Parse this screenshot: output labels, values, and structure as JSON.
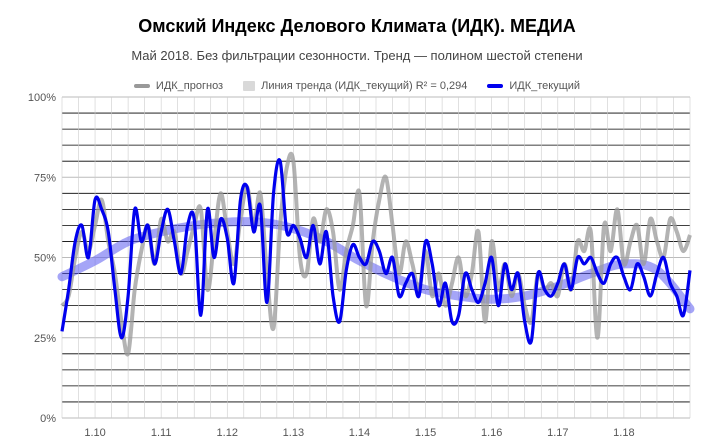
{
  "header": {
    "title": "Омский Индекс Делового Климата (ИДК). МЕДИА",
    "subtitle": "Май 2018. Без фильтрации сезонности. Тренд — полином шестой степени"
  },
  "legend": [
    {
      "label": "ИДК_прогноз",
      "color": "#999999"
    },
    {
      "label": "Линия тренда (ИДК_текущий) R² = 0,294",
      "color": "#d9d9d9"
    },
    {
      "label": "ИДК_текущий",
      "color": "#0000ee"
    }
  ],
  "colors": {
    "forecast": "#999999",
    "current": "#0000ee",
    "trend": "#5b5bf0",
    "grid": "#000000"
  },
  "chart_data": {
    "type": "line",
    "title": "Омский Индекс Делового Климата (ИДК). МЕДИА",
    "subtitle": "Май 2018. Без фильтрации сезонности. Тренд — полином шестой степени",
    "x_tick_labels": [
      "1.10",
      "1.11",
      "1.12",
      "1.13",
      "1.14",
      "1.15",
      "1.16",
      "1.17",
      "1.18"
    ],
    "y_tick_labels": [
      "0%",
      "25%",
      "50%",
      "75%",
      "100%"
    ],
    "xlim": [
      2009.0,
      2018.5
    ],
    "ylim": [
      0,
      100
    ],
    "grid": true,
    "legend_position": "top",
    "series": [
      {
        "name": "ИДК_прогноз",
        "style": "gray-thick-line",
        "x": [
          2009.0,
          2009.1,
          2009.2,
          2009.3,
          2009.4,
          2009.5,
          2009.6,
          2009.7,
          2009.8,
          2009.9,
          2010.0,
          2010.1,
          2010.2,
          2010.3,
          2010.4,
          2010.5,
          2010.6,
          2010.7,
          2010.8,
          2010.9,
          2011.0,
          2011.1,
          2011.2,
          2011.3,
          2011.4,
          2011.5,
          2011.6,
          2011.7,
          2011.8,
          2011.9,
          2012.0,
          2012.1,
          2012.2,
          2012.3,
          2012.4,
          2012.5,
          2012.6,
          2012.7,
          2012.8,
          2012.9,
          2013.0,
          2013.1,
          2013.2,
          2013.3,
          2013.4,
          2013.5,
          2013.6,
          2013.7,
          2013.8,
          2013.9,
          2014.0,
          2014.1,
          2014.2,
          2014.3,
          2014.4,
          2014.5,
          2014.6,
          2014.7,
          2014.8,
          2014.9,
          2015.0,
          2015.1,
          2015.2,
          2015.3,
          2015.4,
          2015.5,
          2015.6,
          2015.7,
          2015.8,
          2015.9,
          2016.0,
          2016.1,
          2016.2,
          2016.3,
          2016.4,
          2016.5,
          2016.6,
          2016.7,
          2016.8,
          2016.9,
          2017.0,
          2017.1,
          2017.2,
          2017.3,
          2017.4,
          2017.5,
          2017.6,
          2017.7,
          2017.8,
          2017.9,
          2018.0,
          2018.1,
          2018.2,
          2018.3,
          2018.4,
          2018.5
        ],
        "values": [
          35,
          38,
          50,
          58,
          52,
          60,
          68,
          55,
          45,
          30,
          20,
          40,
          52,
          60,
          48,
          62,
          55,
          58,
          45,
          52,
          60,
          65,
          40,
          55,
          70,
          58,
          48,
          62,
          72,
          60,
          70,
          45,
          28,
          60,
          78,
          80,
          50,
          45,
          62,
          55,
          65,
          58,
          40,
          52,
          60,
          70,
          35,
          55,
          68,
          75,
          60,
          45,
          55,
          48,
          40,
          52,
          38,
          45,
          35,
          42,
          50,
          38,
          45,
          58,
          30,
          55,
          40,
          48,
          38,
          45,
          35,
          30,
          45,
          40,
          42,
          38,
          48,
          40,
          55,
          52,
          58,
          25,
          60,
          52,
          65,
          48,
          55,
          60,
          48,
          62,
          55,
          50,
          62,
          58,
          52,
          57
        ]
      },
      {
        "name": "ИДК_текущий",
        "style": "blue-line",
        "x": [
          2009.0,
          2009.1,
          2009.2,
          2009.3,
          2009.4,
          2009.5,
          2009.6,
          2009.7,
          2009.8,
          2009.9,
          2010.0,
          2010.1,
          2010.2,
          2010.3,
          2010.4,
          2010.5,
          2010.6,
          2010.7,
          2010.8,
          2010.9,
          2011.0,
          2011.1,
          2011.2,
          2011.3,
          2011.4,
          2011.5,
          2011.6,
          2011.7,
          2011.8,
          2011.9,
          2012.0,
          2012.1,
          2012.2,
          2012.3,
          2012.4,
          2012.5,
          2012.6,
          2012.7,
          2012.8,
          2012.9,
          2013.0,
          2013.1,
          2013.2,
          2013.3,
          2013.4,
          2013.5,
          2013.6,
          2013.7,
          2013.8,
          2013.9,
          2014.0,
          2014.1,
          2014.2,
          2014.3,
          2014.4,
          2014.5,
          2014.6,
          2014.7,
          2014.8,
          2014.9,
          2015.0,
          2015.1,
          2015.2,
          2015.3,
          2015.4,
          2015.5,
          2015.6,
          2015.7,
          2015.8,
          2015.9,
          2016.0,
          2016.1,
          2016.2,
          2016.3,
          2016.4,
          2016.5,
          2016.6,
          2016.7,
          2016.8,
          2016.9,
          2017.0,
          2017.1,
          2017.2,
          2017.3,
          2017.4,
          2017.5,
          2017.6,
          2017.7,
          2017.8,
          2017.9,
          2018.0,
          2018.1,
          2018.2,
          2018.3,
          2018.4,
          2018.5
        ],
        "values": [
          27,
          40,
          55,
          60,
          50,
          68,
          65,
          58,
          40,
          25,
          38,
          65,
          55,
          60,
          48,
          58,
          65,
          55,
          45,
          60,
          62,
          32,
          65,
          50,
          62,
          56,
          42,
          68,
          72,
          58,
          66,
          36,
          70,
          80,
          58,
          60,
          56,
          50,
          60,
          48,
          58,
          38,
          30,
          46,
          54,
          50,
          48,
          55,
          52,
          45,
          50,
          38,
          42,
          45,
          38,
          55,
          48,
          35,
          42,
          30,
          32,
          45,
          40,
          36,
          42,
          50,
          35,
          48,
          40,
          45,
          30,
          24,
          45,
          40,
          38,
          42,
          48,
          40,
          50,
          48,
          50,
          45,
          42,
          48,
          50,
          44,
          40,
          48,
          44,
          38,
          45,
          50,
          42,
          38,
          32,
          46
        ]
      },
      {
        "name": "Линия тренда (ИДК_текущий) R² = 0,294",
        "style": "trend-polynomial",
        "x": [
          2009.0,
          2009.5,
          2010.0,
          2010.5,
          2011.0,
          2011.5,
          2012.0,
          2012.5,
          2013.0,
          2013.5,
          2014.0,
          2014.5,
          2015.0,
          2015.5,
          2016.0,
          2016.5,
          2017.0,
          2017.5,
          2018.0,
          2018.5
        ],
        "values": [
          44,
          49,
          55,
          58,
          60,
          61,
          61,
          59,
          55,
          49,
          44,
          40,
          38,
          37,
          38,
          41,
          45,
          48,
          46,
          34
        ]
      }
    ]
  }
}
